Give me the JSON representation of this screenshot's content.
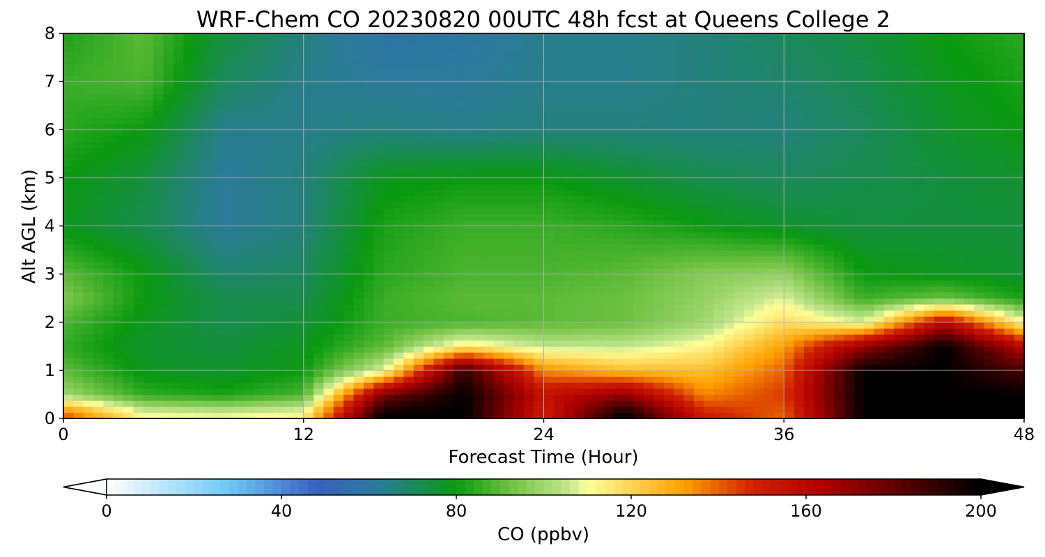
{
  "chart_data": {
    "type": "heatmap",
    "title": "WRF-Chem CO  20230820 00UTC 48h fcst at Queens College 2",
    "xlabel": "Forecast Time (Hour)",
    "ylabel": "Alt AGL (km)",
    "xlim": [
      0,
      48
    ],
    "ylim": [
      0,
      8
    ],
    "xticks": [
      "0",
      "12",
      "24",
      "36",
      "48"
    ],
    "yticks": [
      "0",
      "1",
      "2",
      "3",
      "4",
      "5",
      "6",
      "7",
      "8"
    ],
    "grid": true,
    "x": [
      0,
      4,
      8,
      12,
      16,
      20,
      24,
      28,
      32,
      36,
      40,
      44,
      48
    ],
    "y": [
      0.1,
      0.5,
      1.0,
      1.5,
      2.0,
      2.5,
      3.0,
      4.0,
      5.0,
      6.0,
      7.0,
      8.0
    ],
    "z": [
      [
        140,
        110,
        108,
        112,
        200,
        200,
        150,
        200,
        150,
        140,
        200,
        200,
        200
      ],
      [
        100,
        85,
        82,
        88,
        175,
        200,
        155,
        170,
        135,
        145,
        200,
        200,
        200
      ],
      [
        90,
        78,
        76,
        80,
        108,
        190,
        135,
        125,
        125,
        140,
        200,
        200,
        185
      ],
      [
        85,
        76,
        74,
        78,
        90,
        115,
        105,
        105,
        112,
        132,
        170,
        200,
        160
      ],
      [
        88,
        78,
        72,
        75,
        86,
        88,
        90,
        92,
        100,
        118,
        108,
        160,
        110
      ],
      [
        95,
        80,
        72,
        72,
        86,
        90,
        90,
        92,
        98,
        108,
        86,
        92,
        82
      ],
      [
        90,
        80,
        68,
        70,
        84,
        88,
        88,
        90,
        96,
        98,
        80,
        78,
        76
      ],
      [
        78,
        72,
        62,
        66,
        82,
        86,
        86,
        84,
        80,
        76,
        74,
        74,
        74
      ],
      [
        80,
        74,
        62,
        66,
        78,
        80,
        80,
        76,
        72,
        70,
        72,
        74,
        76
      ],
      [
        84,
        80,
        64,
        64,
        66,
        64,
        66,
        66,
        66,
        66,
        70,
        76,
        80
      ],
      [
        86,
        88,
        70,
        64,
        62,
        62,
        64,
        64,
        66,
        68,
        72,
        78,
        82
      ],
      [
        82,
        90,
        74,
        66,
        58,
        60,
        64,
        64,
        66,
        70,
        74,
        80,
        84
      ]
    ],
    "colorbar": {
      "label": "CO  (ppbv)",
      "min": 0,
      "max": 200,
      "ticks": [
        "0",
        "40",
        "80",
        "120",
        "160",
        "200"
      ],
      "extend": "both",
      "colors": [
        "#ffffff",
        "#6ec8f5",
        "#3a60c0",
        "#2a7a9a",
        "#0a9a10",
        "#6cc040",
        "#c8e890",
        "#ffff9a",
        "#ffa000",
        "#d02000",
        "#b00000",
        "#000000"
      ],
      "stops": [
        0,
        0.14,
        0.24,
        0.31,
        0.4,
        0.46,
        0.53,
        0.55,
        0.66,
        0.74,
        0.82,
        1.0
      ]
    }
  }
}
